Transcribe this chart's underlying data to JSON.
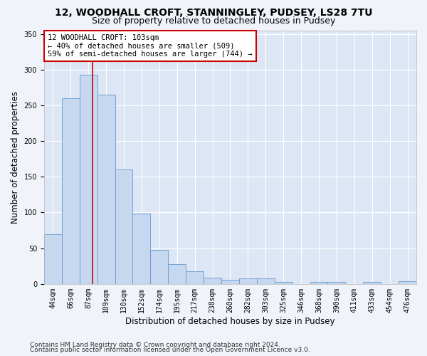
{
  "title": "12, WOODHALL CROFT, STANNINGLEY, PUDSEY, LS28 7TU",
  "subtitle": "Size of property relative to detached houses in Pudsey",
  "xlabel": "Distribution of detached houses by size in Pudsey",
  "ylabel": "Number of detached properties",
  "categories": [
    "44sqm",
    "66sqm",
    "87sqm",
    "109sqm",
    "130sqm",
    "152sqm",
    "174sqm",
    "195sqm",
    "217sqm",
    "238sqm",
    "260sqm",
    "282sqm",
    "303sqm",
    "325sqm",
    "346sqm",
    "368sqm",
    "390sqm",
    "411sqm",
    "433sqm",
    "454sqm",
    "476sqm"
  ],
  "values": [
    70,
    260,
    293,
    265,
    160,
    98,
    48,
    28,
    18,
    9,
    6,
    8,
    8,
    3,
    0,
    3,
    3,
    0,
    3,
    0,
    4
  ],
  "bar_color": "#c5d8f0",
  "bar_edge_color": "#6699cc",
  "vline_index": 2.65,
  "annotation_title": "12 WOODHALL CROFT: 103sqm",
  "annotation_line1": "← 40% of detached houses are smaller (509)",
  "annotation_line2": "59% of semi-detached houses are larger (744) →",
  "annotation_box_color": "#ffffff",
  "annotation_box_edge_color": "#cc0000",
  "vline_color": "#cc0000",
  "ylim": [
    0,
    355
  ],
  "yticks": [
    0,
    50,
    100,
    150,
    200,
    250,
    300,
    350
  ],
  "footnote1": "Contains HM Land Registry data © Crown copyright and database right 2024.",
  "footnote2": "Contains public sector information licensed under the Open Government Licence v3.0.",
  "background_color": "#f0f4fa",
  "plot_bg_color": "#dce6f5",
  "grid_color": "#ffffff",
  "title_fontsize": 10,
  "subtitle_fontsize": 9,
  "axis_label_fontsize": 8.5,
  "tick_fontsize": 7,
  "annotation_fontsize": 7.5,
  "footnote_fontsize": 6.5
}
